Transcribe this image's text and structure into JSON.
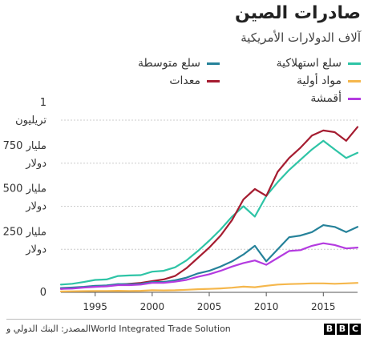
{
  "header": {
    "title": "صادرات الصين",
    "subtitle": "آلاف الدولارات الأمريكية"
  },
  "footer": {
    "source": "المصدر: البنك الدولي وWorld Integrated Trade Solution",
    "logo_letters": [
      "B",
      "B",
      "C"
    ]
  },
  "chart_data": {
    "type": "line",
    "title": "صادرات الصين",
    "subtitle": "آلاف الدولارات الأمريكية",
    "xlabel": "",
    "ylabel": "",
    "xlim": [
      1992,
      2018
    ],
    "ylim": [
      0,
      1000
    ],
    "x_ticks": [
      1995,
      2000,
      2005,
      2010,
      2015
    ],
    "y_ticks": [
      {
        "value": 0,
        "lines": [
          "0"
        ]
      },
      {
        "value": 250,
        "lines": [
          "250 مليار",
          "دولار"
        ]
      },
      {
        "value": 500,
        "lines": [
          "500 مليار",
          "دولار"
        ]
      },
      {
        "value": 750,
        "lines": [
          "750 مليار",
          "دولار"
        ]
      },
      {
        "value": 1000,
        "lines": [
          "1",
          "تريليون"
        ]
      }
    ],
    "grid": {
      "horizontal": true,
      "vertical": false
    },
    "legend_position": "top-right",
    "x": [
      1992,
      1993,
      1994,
      1995,
      1996,
      1997,
      1998,
      1999,
      2000,
      2001,
      2002,
      2003,
      2004,
      2005,
      2006,
      2007,
      2008,
      2009,
      2010,
      2011,
      2012,
      2013,
      2014,
      2015,
      2016,
      2017,
      2018
    ],
    "series": [
      {
        "name": "سلع استهلاكية",
        "color": "#2ec4a6",
        "values": [
          45,
          50,
          60,
          72,
          75,
          95,
          98,
          100,
          120,
          125,
          145,
          185,
          240,
          300,
          365,
          440,
          500,
          440,
          560,
          640,
          710,
          770,
          830,
          880,
          830,
          780,
          810
        ]
      },
      {
        "name": "معدات",
        "color": "#a51c30",
        "values": [
          20,
          25,
          30,
          35,
          38,
          45,
          50,
          55,
          65,
          75,
          95,
          140,
          200,
          260,
          330,
          420,
          540,
          600,
          560,
          700,
          780,
          840,
          910,
          940,
          930,
          880,
          960
        ]
      },
      {
        "name": "سلع متوسطة",
        "color": "#26829a",
        "values": [
          25,
          28,
          32,
          38,
          40,
          48,
          47,
          50,
          60,
          60,
          70,
          85,
          110,
          125,
          150,
          180,
          220,
          270,
          180,
          250,
          320,
          330,
          350,
          390,
          380,
          350,
          380
        ]
      },
      {
        "name": "أقمشة",
        "color": "#b43be0",
        "values": [
          20,
          22,
          28,
          32,
          35,
          42,
          42,
          45,
          55,
          55,
          62,
          72,
          90,
          105,
          125,
          150,
          170,
          185,
          160,
          200,
          240,
          245,
          270,
          285,
          275,
          255,
          260
        ]
      },
      {
        "name": "مواد أولية",
        "color": "#f5b74c",
        "values": [
          5,
          6,
          7,
          8,
          8,
          9,
          8,
          9,
          12,
          11,
          12,
          15,
          18,
          20,
          23,
          27,
          33,
          30,
          38,
          45,
          48,
          50,
          52,
          52,
          50,
          52,
          55
        ]
      }
    ]
  }
}
